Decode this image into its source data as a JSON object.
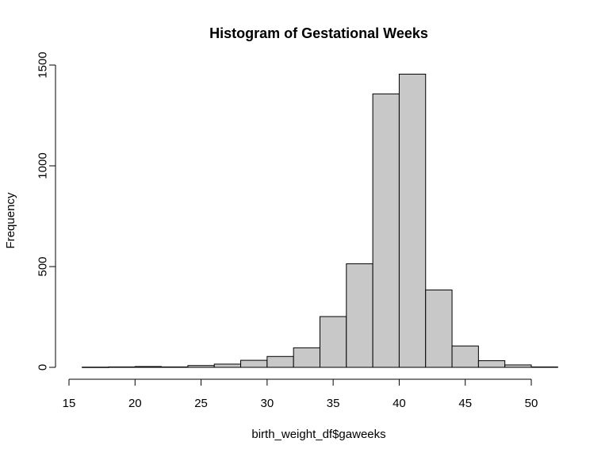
{
  "chart_data": {
    "type": "bar",
    "title": "Histogram of Gestational Weeks",
    "xlabel": "birth_weight_df$gaweeks",
    "ylabel": "Frequency",
    "bins": [
      {
        "start": 16,
        "end": 18,
        "count": 1
      },
      {
        "start": 18,
        "end": 20,
        "count": 2
      },
      {
        "start": 20,
        "end": 22,
        "count": 4
      },
      {
        "start": 22,
        "end": 24,
        "count": 2
      },
      {
        "start": 24,
        "end": 26,
        "count": 9
      },
      {
        "start": 26,
        "end": 28,
        "count": 16
      },
      {
        "start": 28,
        "end": 30,
        "count": 35
      },
      {
        "start": 30,
        "end": 32,
        "count": 54
      },
      {
        "start": 32,
        "end": 34,
        "count": 97
      },
      {
        "start": 34,
        "end": 36,
        "count": 252
      },
      {
        "start": 36,
        "end": 38,
        "count": 514
      },
      {
        "start": 38,
        "end": 40,
        "count": 1357
      },
      {
        "start": 40,
        "end": 42,
        "count": 1455
      },
      {
        "start": 42,
        "end": 44,
        "count": 384
      },
      {
        "start": 44,
        "end": 46,
        "count": 106
      },
      {
        "start": 46,
        "end": 48,
        "count": 33
      },
      {
        "start": 48,
        "end": 50,
        "count": 12
      },
      {
        "start": 50,
        "end": 52,
        "count": 2
      }
    ],
    "xticks": [
      15,
      20,
      25,
      30,
      35,
      40,
      45,
      50
    ],
    "yticks": [
      0,
      500,
      1000,
      1500
    ],
    "xlim": [
      15,
      52
    ],
    "ylim": [
      0,
      1500
    ],
    "grid": false,
    "legend": "none"
  }
}
